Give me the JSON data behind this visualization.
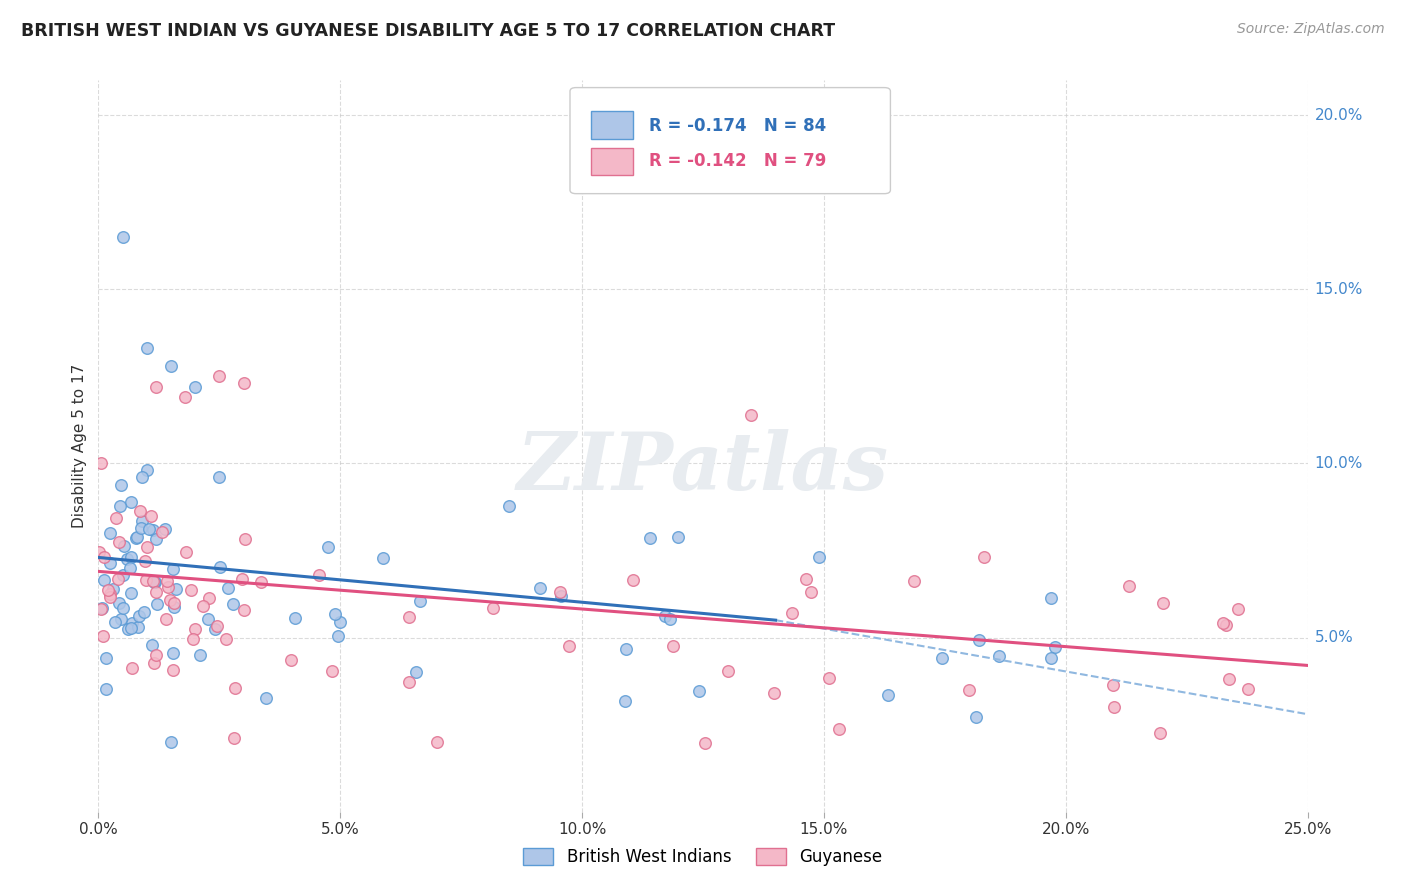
{
  "title": "BRITISH WEST INDIAN VS GUYANESE DISABILITY AGE 5 TO 17 CORRELATION CHART",
  "source_text": "Source: ZipAtlas.com",
  "ylabel": "Disability Age 5 to 17",
  "xlim": [
    0.0,
    0.25
  ],
  "ylim": [
    0.0,
    0.21
  ],
  "xtick_vals": [
    0.0,
    0.05,
    0.1,
    0.15,
    0.2,
    0.25
  ],
  "xticklabels": [
    "0.0%",
    "5.0%",
    "10.0%",
    "15.0%",
    "20.0%",
    "25.0%"
  ],
  "ytick_vals": [
    0.05,
    0.1,
    0.15,
    0.2
  ],
  "yticklabels": [
    "5.0%",
    "10.0%",
    "15.0%",
    "20.0%"
  ],
  "legend_r1": "R = -0.174",
  "legend_n1": "N = 84",
  "legend_r2": "R = -0.142",
  "legend_n2": "N = 79",
  "color_blue_fill": "#aec6e8",
  "color_blue_edge": "#5b9bd5",
  "color_pink_fill": "#f4b8c8",
  "color_pink_edge": "#e07090",
  "color_blue_line": "#3070b8",
  "color_pink_line": "#e05080",
  "color_blue_dash": "#90b8e0",
  "color_right_axis": "#4488cc",
  "watermark_color": "#e8ecf0",
  "grid_color": "#cccccc",
  "background_color": "#ffffff",
  "legend_label1": "British West Indians",
  "legend_label2": "Guyanese",
  "trendline1_x0": 0.0,
  "trendline1_y0": 0.073,
  "trendline1_x1": 0.14,
  "trendline1_y1": 0.055,
  "trendline1_dash_x1": 0.25,
  "trendline1_dash_y1": 0.028,
  "trendline2_x0": 0.0,
  "trendline2_y0": 0.069,
  "trendline2_x1": 0.25,
  "trendline2_y1": 0.042
}
